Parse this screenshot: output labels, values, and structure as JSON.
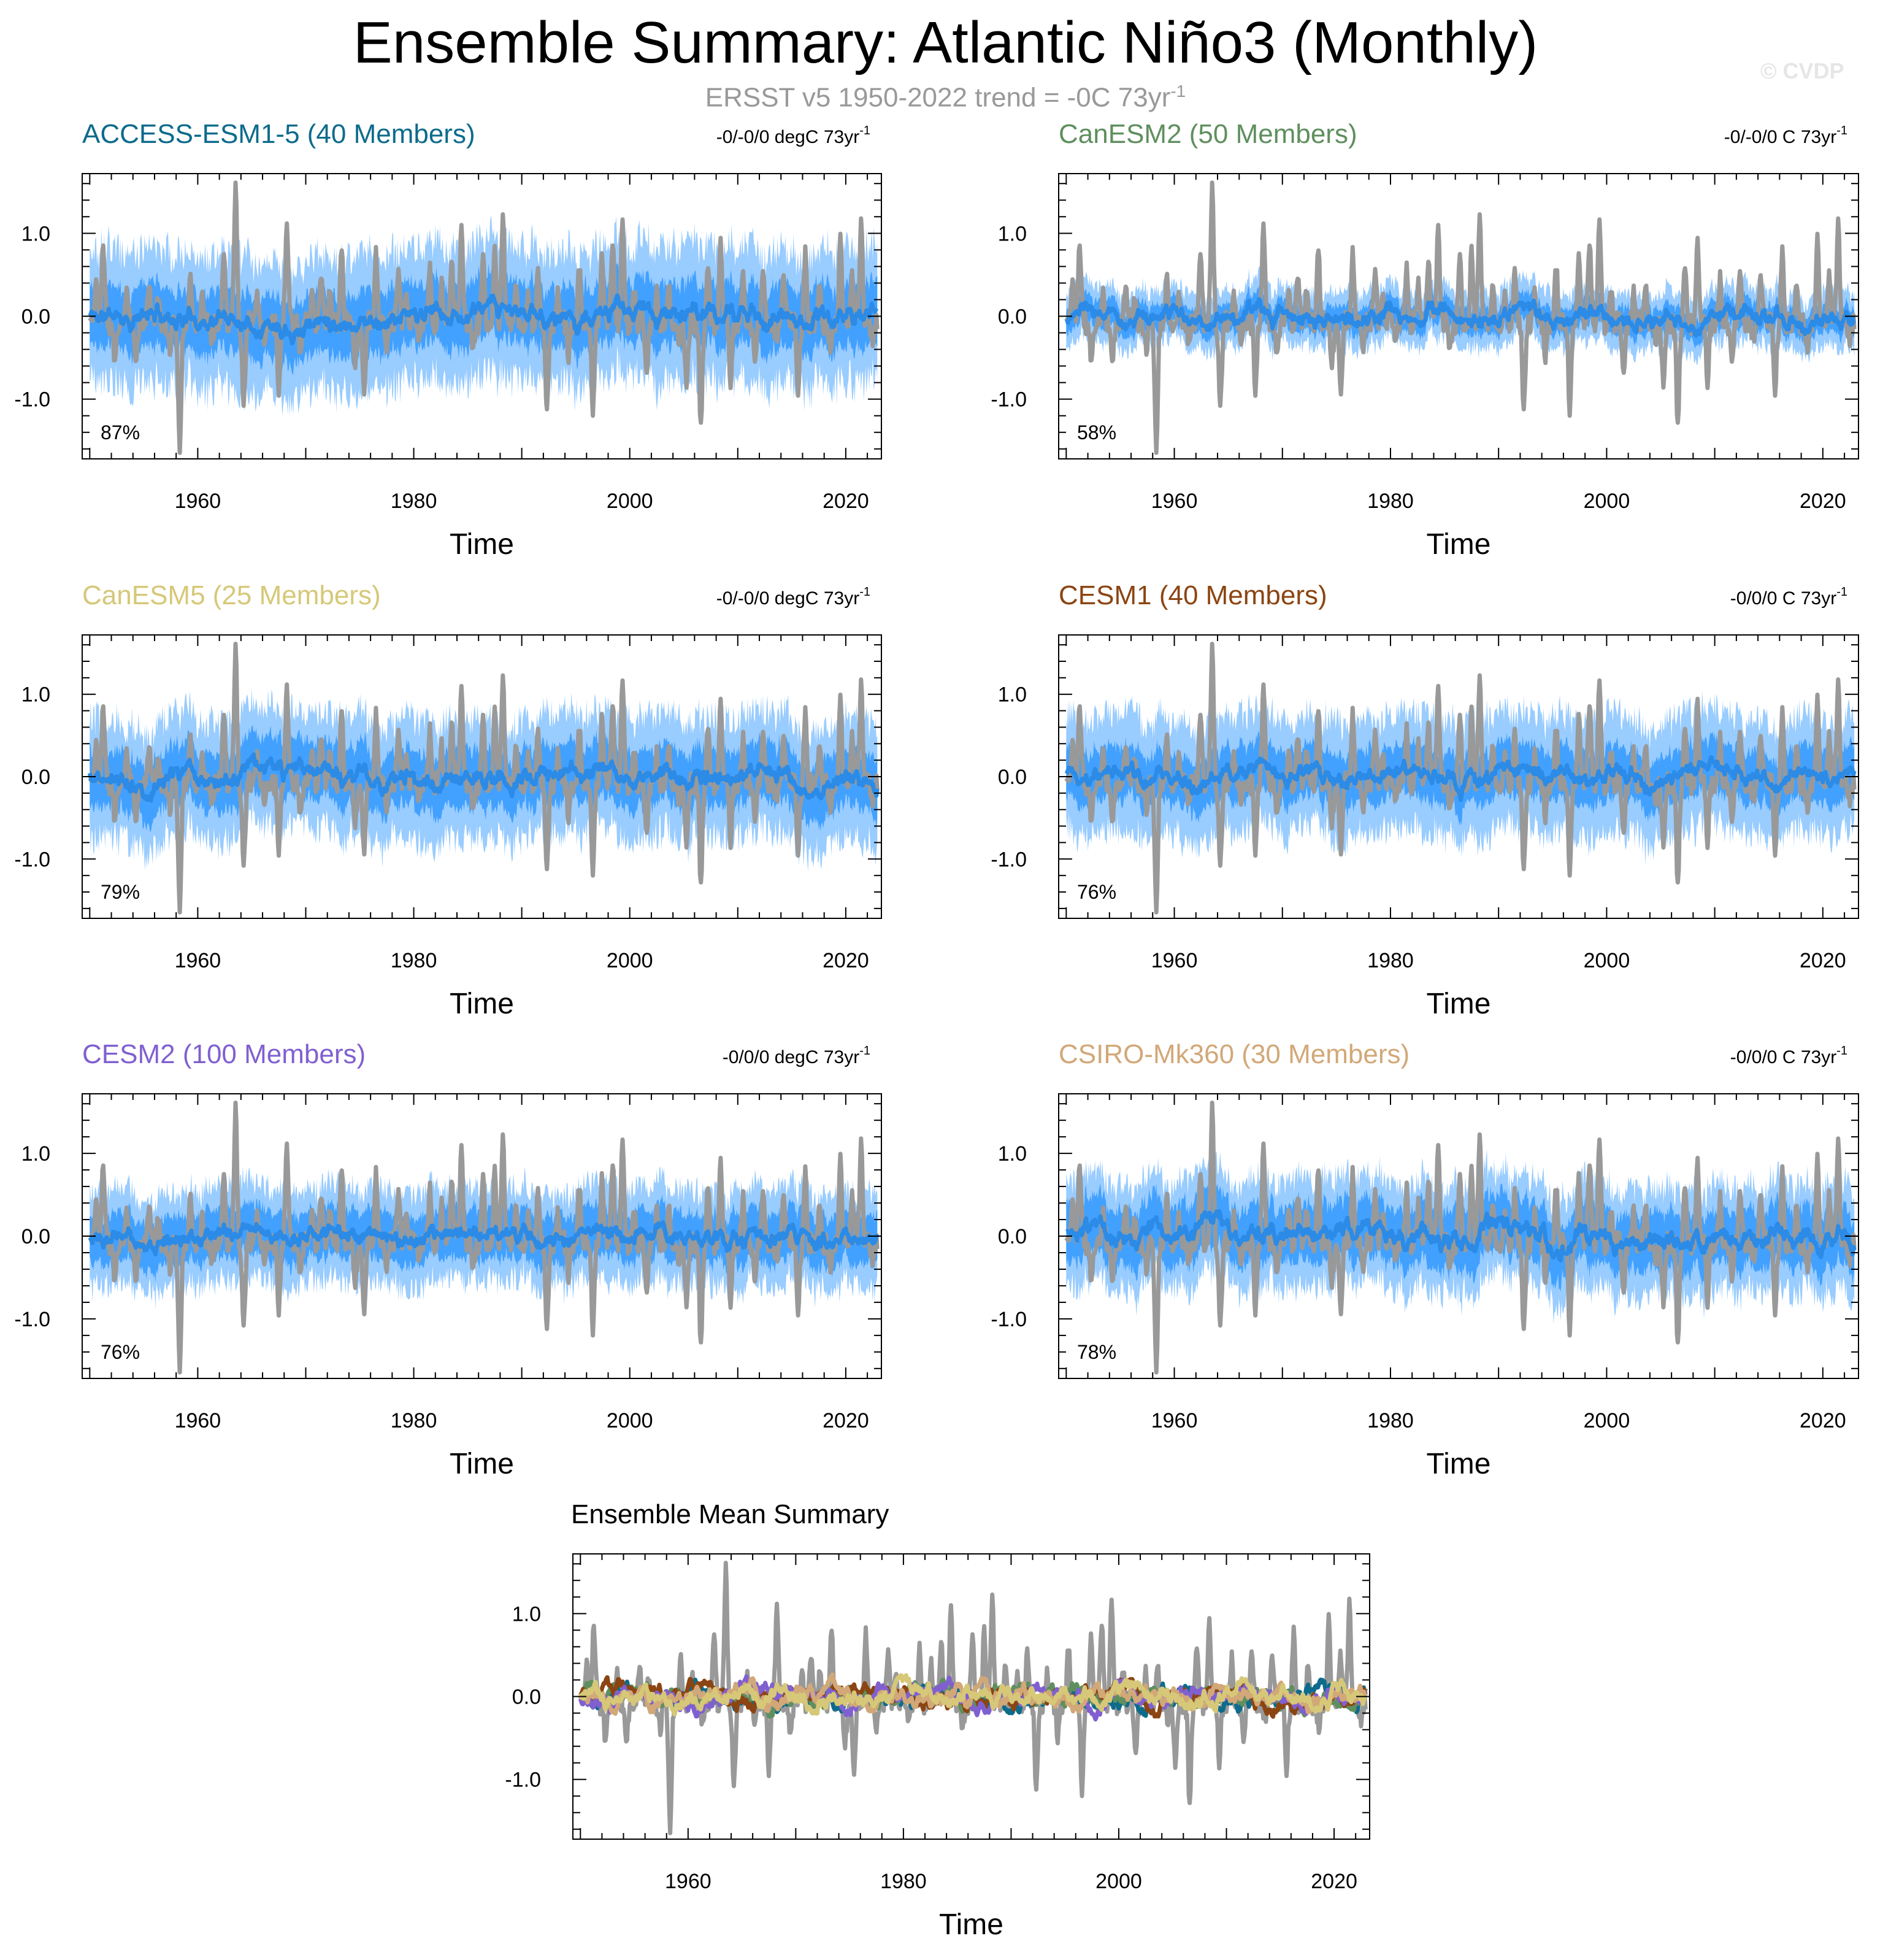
{
  "title": "Ensemble Summary: Atlantic Niño3 (Monthly)",
  "subtitle": {
    "text": "ERSST v5 1950-2022 trend = -0C 73yr",
    "sup": "-1"
  },
  "watermark": "© CVDP",
  "colors": {
    "observed": "#999999",
    "ensemble_mean": "#2b8be6",
    "spread_inner": "#3399ff",
    "spread_outer": "#99ccff"
  },
  "chart_data": [
    {
      "type": "line",
      "title": "ACCESS-ESM1-5 (40 Members)",
      "title_color": "#0d6b8c",
      "trend": "-0/-0/0 degC 73yr",
      "trend_sup": "-1",
      "percent": "87%",
      "xlabel": "Time",
      "xlim": [
        1949.3,
        2023.3
      ],
      "ylim": [
        -1.72,
        1.72
      ],
      "xticks": [
        1960,
        1980,
        2000,
        2020
      ],
      "yticks": [
        1.0,
        0.0,
        -1.0
      ],
      "ytick_labels": [
        "1.0",
        "0.0",
        "-1.0"
      ],
      "spread": {
        "inner": 0.38,
        "outer": 0.78
      },
      "mean_amp": 0.12,
      "seed": 11
    },
    {
      "type": "line",
      "title": "CanESM2 (50 Members)",
      "title_color": "#5f8f5f",
      "trend": "-0/-0/0 C 73yr",
      "trend_sup": "-1",
      "percent": "58%",
      "xlabel": "Time",
      "xlim": [
        1949.3,
        2023.3
      ],
      "ylim": [
        -1.72,
        1.72
      ],
      "xticks": [
        1960,
        1980,
        2000,
        2020
      ],
      "yticks": [
        1.0,
        0.0,
        -1.0
      ],
      "ytick_labels": [
        "1.0",
        "0.0",
        "-1.0"
      ],
      "spread": {
        "inner": 0.16,
        "outer": 0.32
      },
      "mean_amp": 0.1,
      "seed": 23
    },
    {
      "type": "line",
      "title": "CanESM5 (25 Members)",
      "title_color": "#d6c878",
      "trend": "-0/-0/0 degC 73yr",
      "trend_sup": "-1",
      "percent": "79%",
      "xlabel": "Time",
      "xlim": [
        1949.3,
        2023.3
      ],
      "ylim": [
        -1.72,
        1.72
      ],
      "xticks": [
        1960,
        1980,
        2000,
        2020
      ],
      "yticks": [
        1.0,
        0.0,
        -1.0
      ],
      "ytick_labels": [
        "1.0",
        "0.0",
        "-1.0"
      ],
      "spread": {
        "inner": 0.35,
        "outer": 0.7
      },
      "mean_amp": 0.12,
      "seed": 37
    },
    {
      "type": "line",
      "title": "CESM1 (40 Members)",
      "title_color": "#8b4513",
      "trend": "-0/0/0 C 73yr",
      "trend_sup": "-1",
      "percent": "76%",
      "xlabel": "Time",
      "xlim": [
        1949.3,
        2023.3
      ],
      "ylim": [
        -1.72,
        1.72
      ],
      "xticks": [
        1960,
        1980,
        2000,
        2020
      ],
      "yticks": [
        1.0,
        0.0,
        -1.0
      ],
      "ytick_labels": [
        "1.0",
        "0.0",
        "-1.0"
      ],
      "spread": {
        "inner": 0.32,
        "outer": 0.68
      },
      "mean_amp": 0.11,
      "seed": 41
    },
    {
      "type": "line",
      "title": "CESM2 (100 Members)",
      "title_color": "#8060d0",
      "trend": "-0/0/0 degC 73yr",
      "trend_sup": "-1",
      "percent": "76%",
      "xlabel": "Time",
      "xlim": [
        1949.3,
        2023.3
      ],
      "ylim": [
        -1.72,
        1.72
      ],
      "xticks": [
        1960,
        1980,
        2000,
        2020
      ],
      "yticks": [
        1.0,
        0.0,
        -1.0
      ],
      "ytick_labels": [
        "1.0",
        "0.0",
        "-1.0"
      ],
      "spread": {
        "inner": 0.3,
        "outer": 0.55
      },
      "mean_amp": 0.09,
      "seed": 53
    },
    {
      "type": "line",
      "title": "CSIRO-Mk360 (30 Members)",
      "title_color": "#d2a878",
      "trend": "-0/0/0 C 73yr",
      "trend_sup": "-1",
      "percent": "78%",
      "xlabel": "Time",
      "xlim": [
        1949.3,
        2023.3
      ],
      "ylim": [
        -1.72,
        1.72
      ],
      "xticks": [
        1960,
        1980,
        2000,
        2020
      ],
      "yticks": [
        1.0,
        0.0,
        -1.0
      ],
      "ytick_labels": [
        "1.0",
        "0.0",
        "-1.0"
      ],
      "spread": {
        "inner": 0.35,
        "outer": 0.62
      },
      "mean_amp": 0.14,
      "seed": 67
    },
    {
      "type": "line",
      "title": "Ensemble Mean Summary",
      "title_color": "#000000",
      "xlabel": "Time",
      "xlim": [
        1949.3,
        2023.3
      ],
      "ylim": [
        -1.72,
        1.72
      ],
      "xticks": [
        1960,
        1980,
        2000,
        2020
      ],
      "yticks": [
        1.0,
        0.0,
        -1.0
      ],
      "ytick_labels": [
        "1.0",
        "0.0",
        "-1.0"
      ],
      "series": [
        {
          "name": "ACCESS-ESM1-5",
          "color": "#0d6b8c"
        },
        {
          "name": "CanESM2",
          "color": "#5f8f5f"
        },
        {
          "name": "CESM1",
          "color": "#8b4513"
        },
        {
          "name": "CESM2",
          "color": "#8060d0"
        },
        {
          "name": "CSIRO-Mk360",
          "color": "#d2a878"
        },
        {
          "name": "CanESM5",
          "color": "#d6c878"
        }
      ]
    }
  ],
  "observations": {
    "name": "ERSST v5",
    "years": [
      1950,
      1951,
      1952,
      1953,
      1954,
      1955,
      1956,
      1957,
      1958,
      1959,
      1960,
      1961,
      1962,
      1963,
      1964,
      1965,
      1966,
      1967,
      1968,
      1969,
      1970,
      1971,
      1972,
      1973,
      1974,
      1975,
      1976,
      1977,
      1978,
      1979,
      1980,
      1981,
      1982,
      1983,
      1984,
      1985,
      1986,
      1987,
      1988,
      1989,
      1990,
      1991,
      1992,
      1993,
      1994,
      1995,
      1996,
      1997,
      1998,
      1999,
      2000,
      2001,
      2002,
      2003,
      2004,
      2005,
      2006,
      2007,
      2008,
      2009,
      2010,
      2011,
      2012,
      2013,
      2014,
      2015,
      2016,
      2017,
      2018,
      2019,
      2020,
      2021,
      2022
    ],
    "peak_anomalies": [
      0.45,
      0.9,
      -0.55,
      0.3,
      -0.6,
      0.4,
      0.2,
      -0.4,
      -1.65,
      0.5,
      0.25,
      -0.3,
      0.75,
      1.55,
      -1.15,
      0.3,
      -0.3,
      -0.9,
      1.15,
      -0.5,
      0.3,
      0.5,
      0.3,
      0.85,
      -0.6,
      -0.9,
      0.8,
      -0.4,
      0.5,
      0.3,
      -0.25,
      0.6,
      0.4,
      0.7,
      1.1,
      -0.4,
      0.7,
      0.85,
      1.2,
      0.4,
      0.3,
      0.6,
      -1.15,
      0.3,
      -0.5,
      0.6,
      -1.15,
      0.75,
      0.9,
      1.15,
      0.3,
      -0.7,
      0.3,
      0.4,
      -0.3,
      -0.8,
      -1.35,
      0.6,
      0.9,
      -0.8,
      0.5,
      -0.5,
      0.6,
      -0.3,
      0.5,
      -0.9,
      0.8,
      0.4,
      -0.4,
      1.0,
      0.5,
      1.15,
      -0.3
    ]
  },
  "x_axis_label": "Time"
}
